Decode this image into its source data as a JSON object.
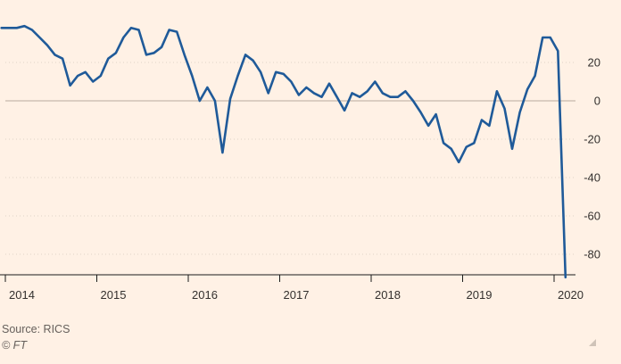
{
  "chart_data": {
    "type": "line",
    "title": "",
    "xlabel": "",
    "ylabel": "",
    "ylim": [
      -92,
      40
    ],
    "yticks": [
      20,
      0,
      -20,
      -40,
      -60,
      -80
    ],
    "xticks": [
      "2014",
      "2015",
      "2016",
      "2017",
      "2018",
      "2019",
      "2020"
    ],
    "grid": true,
    "series": [
      {
        "color": "#1f5a99",
        "points": [
          [
            "2013-12",
            38
          ],
          [
            "2014-01",
            38
          ],
          [
            "2014-02",
            38
          ],
          [
            "2014-03",
            39
          ],
          [
            "2014-04",
            37
          ],
          [
            "2014-05",
            33
          ],
          [
            "2014-06",
            29
          ],
          [
            "2014-07",
            24
          ],
          [
            "2014-08",
            22
          ],
          [
            "2014-09",
            8
          ],
          [
            "2014-10",
            13
          ],
          [
            "2014-11",
            15
          ],
          [
            "2014-12",
            10
          ],
          [
            "2015-01",
            13
          ],
          [
            "2015-02",
            22
          ],
          [
            "2015-03",
            25
          ],
          [
            "2015-04",
            33
          ],
          [
            "2015-05",
            38
          ],
          [
            "2015-06",
            37
          ],
          [
            "2015-07",
            24
          ],
          [
            "2015-08",
            25
          ],
          [
            "2015-09",
            28
          ],
          [
            "2015-10",
            37
          ],
          [
            "2015-11",
            36
          ],
          [
            "2015-12",
            24
          ],
          [
            "2016-01",
            13
          ],
          [
            "2016-02",
            0
          ],
          [
            "2016-03",
            7
          ],
          [
            "2016-04",
            0
          ],
          [
            "2016-05",
            -27
          ],
          [
            "2016-06",
            1
          ],
          [
            "2016-07",
            13
          ],
          [
            "2016-08",
            24
          ],
          [
            "2016-09",
            21
          ],
          [
            "2016-10",
            15
          ],
          [
            "2016-11",
            4
          ],
          [
            "2016-12",
            15
          ],
          [
            "2017-01",
            14
          ],
          [
            "2017-02",
            10
          ],
          [
            "2017-03",
            3
          ],
          [
            "2017-04",
            7
          ],
          [
            "2017-05",
            4
          ],
          [
            "2017-06",
            2
          ],
          [
            "2017-07",
            9
          ],
          [
            "2017-08",
            2
          ],
          [
            "2017-09",
            -5
          ],
          [
            "2017-10",
            4
          ],
          [
            "2017-11",
            2
          ],
          [
            "2017-12",
            5
          ],
          [
            "2018-01",
            10
          ],
          [
            "2018-02",
            4
          ],
          [
            "2018-03",
            2
          ],
          [
            "2018-04",
            2
          ],
          [
            "2018-05",
            5
          ],
          [
            "2018-06",
            0
          ],
          [
            "2018-07",
            -6
          ],
          [
            "2018-08",
            -13
          ],
          [
            "2018-09",
            -7
          ],
          [
            "2018-10",
            -22
          ],
          [
            "2018-11",
            -25
          ],
          [
            "2018-12",
            -32
          ],
          [
            "2019-01",
            -24
          ],
          [
            "2019-02",
            -22
          ],
          [
            "2019-03",
            -10
          ],
          [
            "2019-04",
            -13
          ],
          [
            "2019-05",
            5
          ],
          [
            "2019-06",
            -4
          ],
          [
            "2019-07",
            -25
          ],
          [
            "2019-08",
            -6
          ],
          [
            "2019-09",
            6
          ],
          [
            "2019-10",
            13
          ],
          [
            "2019-11",
            33
          ],
          [
            "2019-12",
            33
          ],
          [
            "2020-01",
            26
          ],
          [
            "2020-02",
            -92
          ]
        ]
      }
    ]
  },
  "footer": {
    "source": "Source: RICS",
    "credit": "© FT"
  }
}
